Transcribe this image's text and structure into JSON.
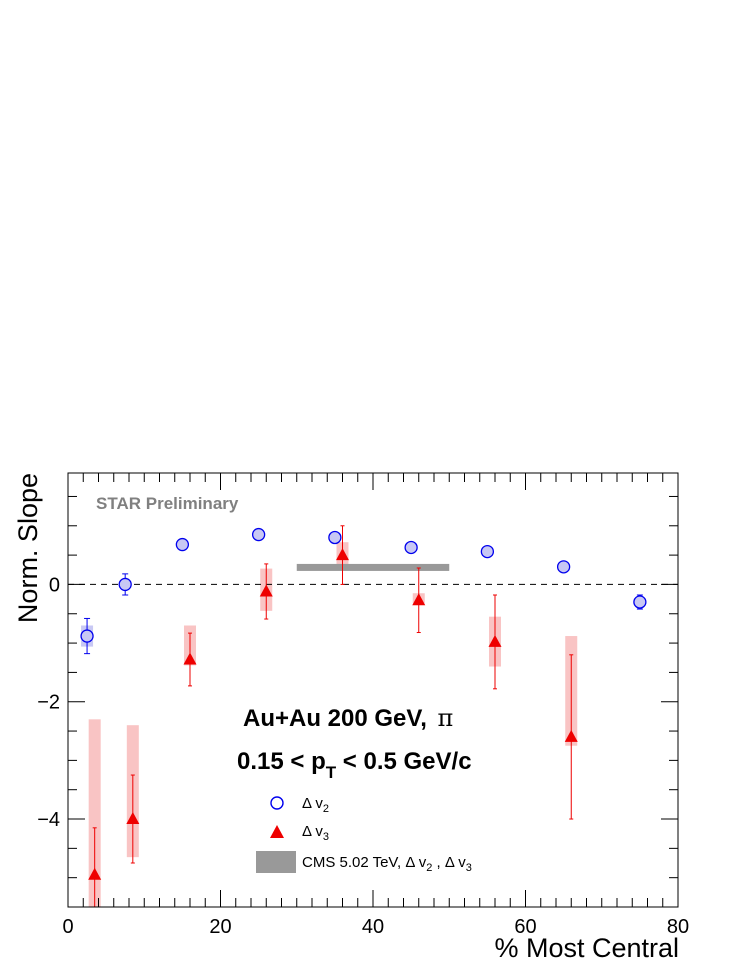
{
  "chart_data": {
    "type": "scatter",
    "xlabel": "% Most Central",
    "ylabel": "Norm. Slope",
    "xlim": [
      0,
      80
    ],
    "ylim": [
      -5.5,
      1.9
    ],
    "x_ticks": [
      0,
      20,
      40,
      60,
      80
    ],
    "x_tick_labels": [
      "0",
      "20",
      "40",
      "60",
      "80"
    ],
    "y_ticks": [
      -4,
      -2,
      0
    ],
    "y_tick_labels": [
      "−4",
      "−2",
      "0"
    ],
    "reference_line_y": 0,
    "annotations": {
      "preliminary": "STAR Preliminary",
      "system": "Au+Au 200 GeV, ",
      "particle": "π",
      "cut_lo": "0.15 < p",
      "cut_sub": "T",
      "cut_hi": " < 0.5 GeV/c"
    },
    "legend": {
      "position": "bottom-center",
      "dv2": {
        "delta": "Δ v",
        "sub": "2"
      },
      "dv3": {
        "delta": "Δ v",
        "sub": "3"
      },
      "cms": {
        "main": "CMS 5.02 TeV, Δ v",
        "sub1": "2",
        "mid": " , Δ v",
        "sub2": "3"
      }
    },
    "series": [
      {
        "key": "dv2",
        "marker": "open-circle",
        "color": "#0000ee",
        "sys_color": "#c8c8f4",
        "points": [
          {
            "x": 2.5,
            "y": -0.88,
            "err": 0.3,
            "sys": 0.18
          },
          {
            "x": 7.5,
            "y": 0.0,
            "err": 0.18,
            "sys": 0.06
          },
          {
            "x": 15,
            "y": 0.68,
            "err": 0.04,
            "sys": 0.04
          },
          {
            "x": 25,
            "y": 0.85,
            "err": 0.04,
            "sys": 0.04
          },
          {
            "x": 35,
            "y": 0.8,
            "err": 0.04,
            "sys": 0.04
          },
          {
            "x": 45,
            "y": 0.63,
            "err": 0.04,
            "sys": 0.04
          },
          {
            "x": 55,
            "y": 0.56,
            "err": 0.04,
            "sys": 0.04
          },
          {
            "x": 65,
            "y": 0.3,
            "err": 0.04,
            "sys": 0.04
          },
          {
            "x": 75,
            "y": -0.3,
            "err": 0.12,
            "sys": 0.06
          }
        ]
      },
      {
        "key": "dv3",
        "marker": "filled-triangle",
        "color": "#ee0000",
        "sys_color": "#f9c4c4",
        "points": [
          {
            "x": 3.5,
            "y": -4.95,
            "err": 0.8,
            "sys_lo": -5.6,
            "sys_hi": -2.3
          },
          {
            "x": 8.5,
            "y": -4.0,
            "err": 0.75,
            "sys_lo": -4.65,
            "sys_hi": -2.4
          },
          {
            "x": 16,
            "y": -1.28,
            "err": 0.45,
            "sys_lo": -1.38,
            "sys_hi": -0.7
          },
          {
            "x": 26,
            "y": -0.12,
            "err": 0.47,
            "sys_lo": -0.45,
            "sys_hi": 0.27
          },
          {
            "x": 36,
            "y": 0.5,
            "err": 0.5,
            "sys_lo": 0.3,
            "sys_hi": 0.72
          },
          {
            "x": 46,
            "y": -0.27,
            "err": 0.55,
            "sys_lo": -0.32,
            "sys_hi": -0.15
          },
          {
            "x": 56,
            "y": -0.98,
            "err": 0.8,
            "sys_lo": -1.4,
            "sys_hi": -0.55
          },
          {
            "x": 66,
            "y": -2.6,
            "err": 1.4,
            "sys_lo": -2.75,
            "sys_hi": -0.88
          }
        ]
      }
    ],
    "cms_band": {
      "x_from": 30,
      "x_to": 50,
      "y": 0.29,
      "color": "#999999"
    }
  }
}
